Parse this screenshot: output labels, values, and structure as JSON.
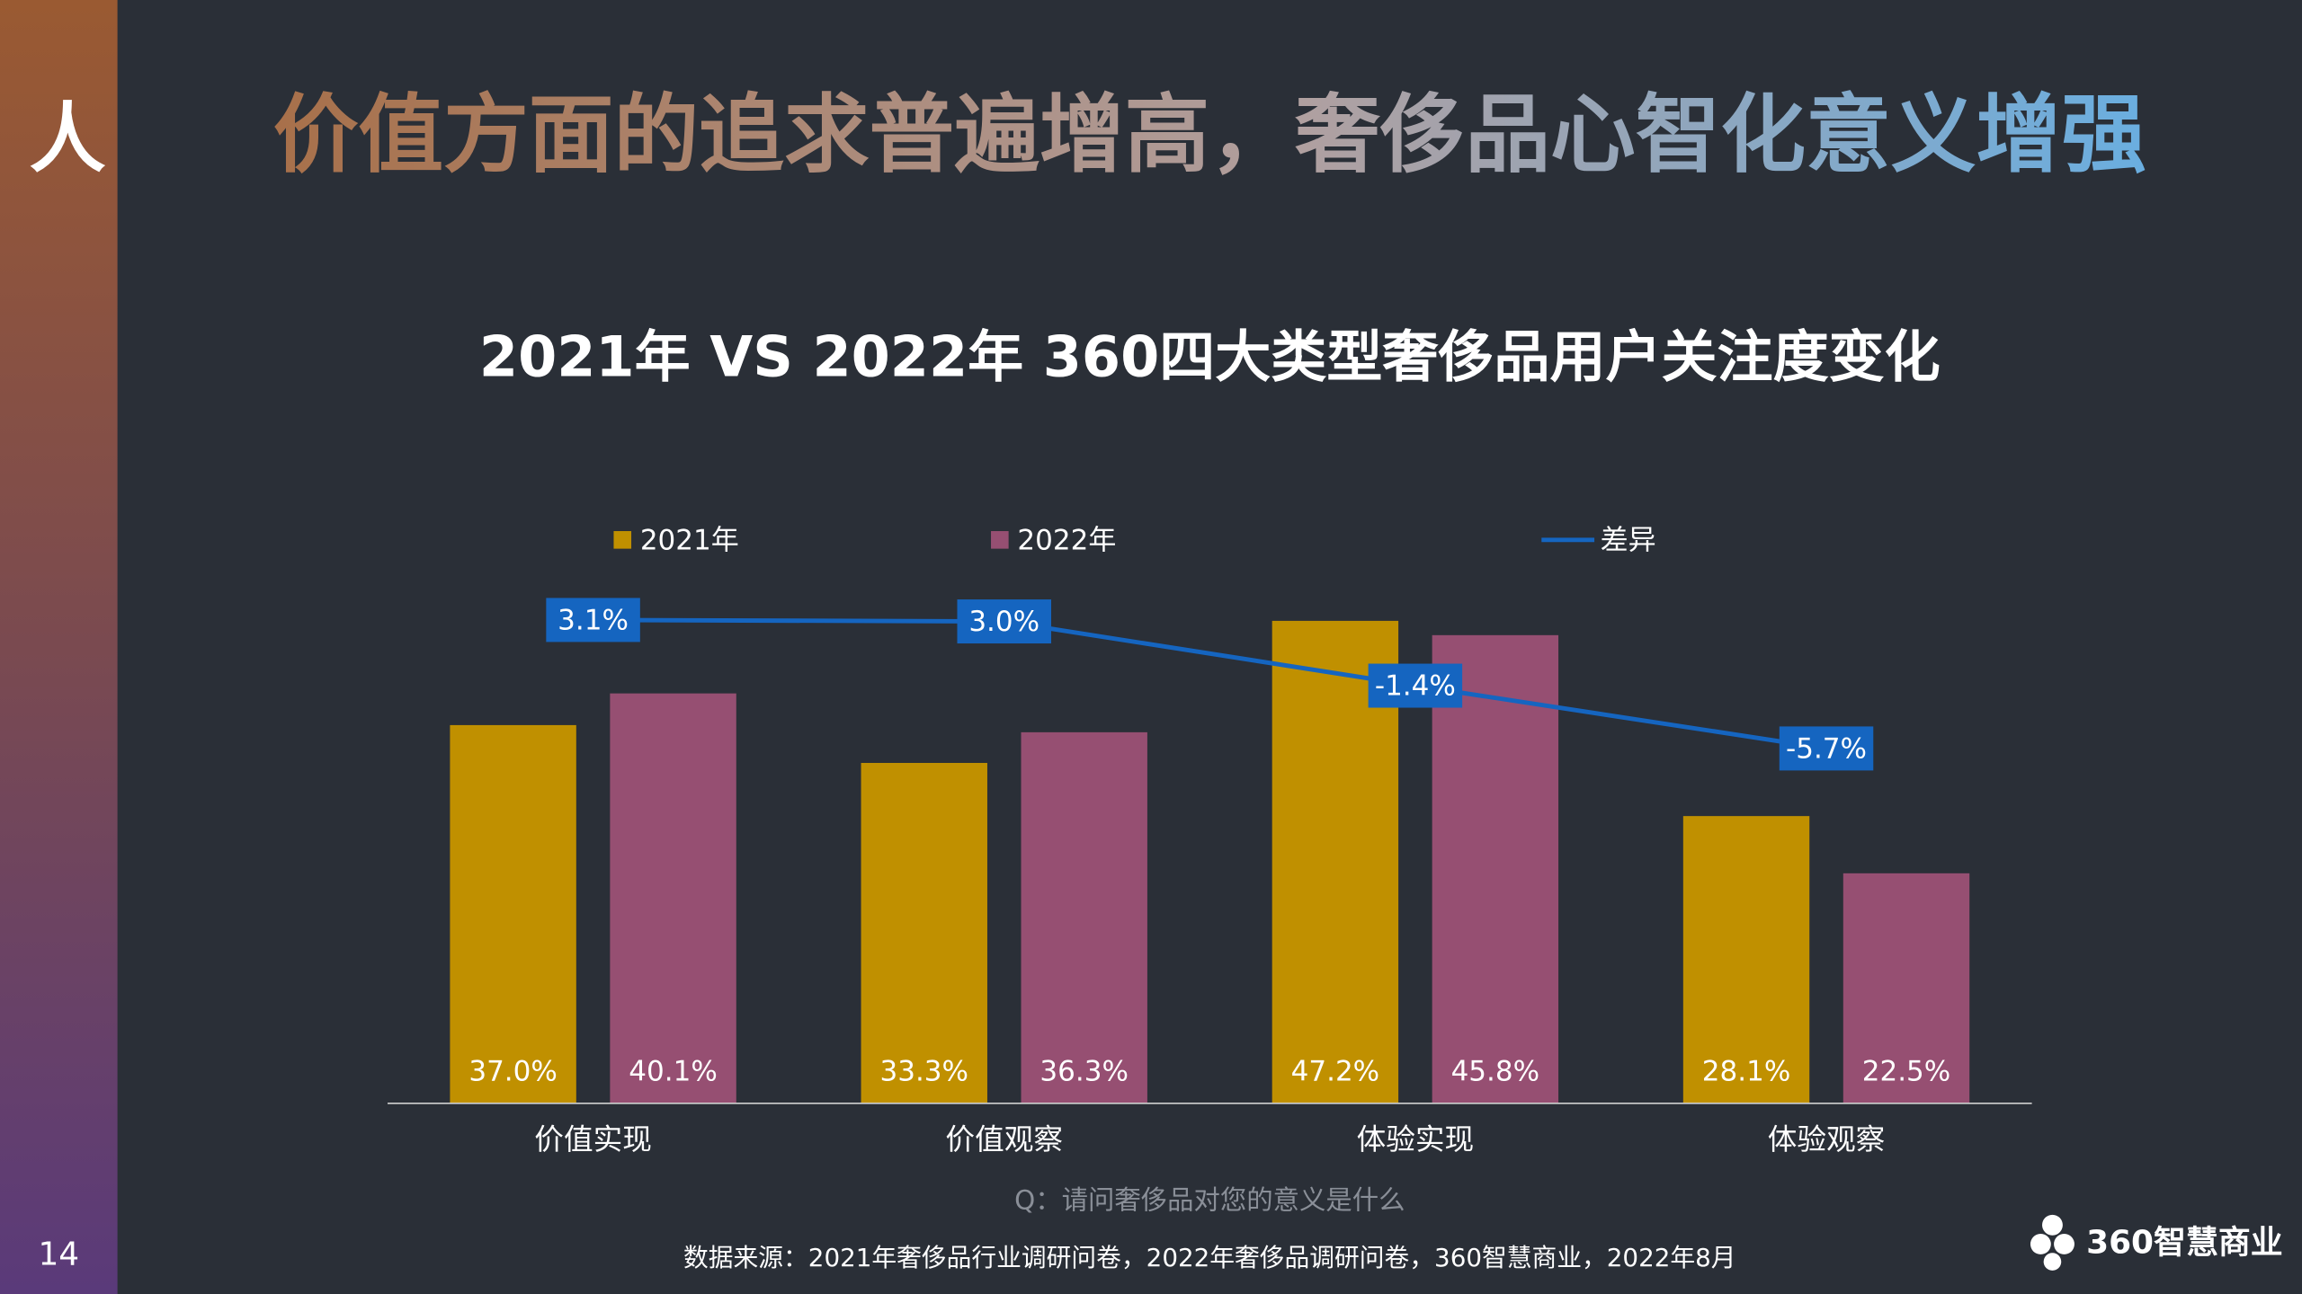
{
  "page": {
    "icon": "人",
    "headline": "价值方面的追求普遍增高，奢侈品心智化意义增强",
    "page_number": "14",
    "question": "Q：请问奢侈品对您的意义是什么",
    "source": "数据来源：2021年奢侈品行业调研问卷，2022年奢侈品调研问卷，360智慧商业，2022年8月",
    "logo": "360智慧商业"
  },
  "chart_data": {
    "type": "bar",
    "title": "2021年 VS 2022年 360四大类型奢侈品用户关注度变化",
    "categories": [
      "价值实现",
      "价值观察",
      "体验实现",
      "体验观察"
    ],
    "series": [
      {
        "name": "2021年",
        "color": "#c09000",
        "values": [
          37.0,
          33.3,
          47.2,
          28.1
        ],
        "value_labels": [
          "37.0%",
          "33.3%",
          "47.2%",
          "28.1%"
        ]
      },
      {
        "name": "2022年",
        "color": "#964f72",
        "values": [
          40.1,
          36.3,
          45.8,
          22.5
        ],
        "value_labels": [
          "40.1%",
          "36.3%",
          "45.8%",
          "22.5%"
        ]
      },
      {
        "name": "差异",
        "type": "line",
        "axis": "y2",
        "color": "#1565c0",
        "values": [
          3.1,
          3.0,
          -1.4,
          -5.7
        ],
        "value_labels": [
          "3.1%",
          "3.0%",
          "-1.4%",
          "-5.7%"
        ]
      }
    ],
    "ylim": [
      0,
      60
    ],
    "y2lim": [
      -30,
      12
    ],
    "legend": "top"
  }
}
